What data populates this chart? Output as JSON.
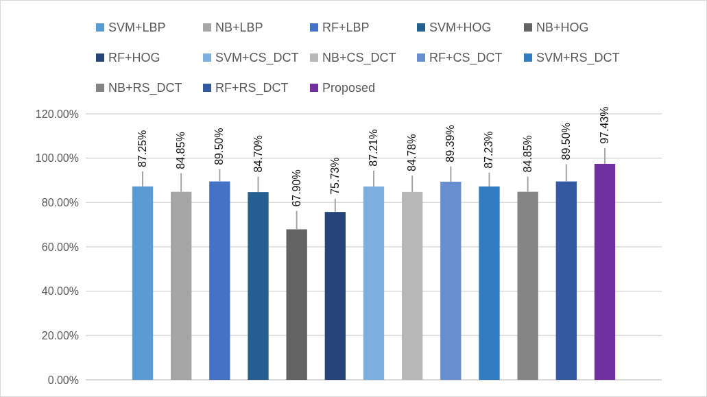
{
  "chart_data": {
    "type": "bar",
    "categories": [
      null
    ],
    "series": [
      {
        "name": "SVM+LBP",
        "color": "#5b9bd5",
        "values": [
          87.25
        ],
        "value_labels": [
          "87.25%"
        ],
        "errors": [
          [
            87.25,
            94.0
          ]
        ]
      },
      {
        "name": "NB+LBP",
        "color": "#a5a5a5",
        "values": [
          84.85
        ],
        "value_labels": [
          "84.85%"
        ],
        "errors": [
          [
            84.85,
            93.2
          ]
        ]
      },
      {
        "name": "RF+LBP",
        "color": "#4472c4",
        "values": [
          89.5
        ],
        "value_labels": [
          "89.50%"
        ],
        "errors": [
          [
            89.5,
            95.0
          ]
        ]
      },
      {
        "name": "SVM+HOG",
        "color": "#255e91",
        "values": [
          84.7
        ],
        "value_labels": [
          "84.70%"
        ],
        "errors": [
          [
            84.7,
            91.7
          ]
        ]
      },
      {
        "name": "NB+HOG",
        "color": "#636363",
        "values": [
          67.9
        ],
        "value_labels": [
          "67.90%"
        ],
        "errors": [
          [
            67.9,
            76.2
          ]
        ]
      },
      {
        "name": "RF+HOG",
        "color": "#264478",
        "values": [
          75.73
        ],
        "value_labels": [
          "75.73%"
        ],
        "errors": [
          [
            75.73,
            81.7
          ]
        ]
      },
      {
        "name": "SVM+CS_DCT",
        "color": "#7cafdd",
        "values": [
          87.21
        ],
        "value_labels": [
          "87.21%"
        ],
        "errors": [
          [
            87.21,
            94.4
          ]
        ]
      },
      {
        "name": "NB+CS_DCT",
        "color": "#b7b7b7",
        "values": [
          84.78
        ],
        "value_labels": [
          "84.78%"
        ],
        "errors": [
          [
            84.78,
            92.2
          ]
        ]
      },
      {
        "name": "RF+CS_DCT",
        "color": "#698ed0",
        "values": [
          89.39
        ],
        "value_labels": [
          "89.39%"
        ],
        "errors": [
          [
            89.39,
            96.3
          ]
        ]
      },
      {
        "name": "SVM+RS_DCT",
        "color": "#327dc2",
        "values": [
          87.23
        ],
        "value_labels": [
          "87.23%"
        ],
        "errors": [
          [
            87.23,
            93.5
          ]
        ]
      },
      {
        "name": "NB+RS_DCT",
        "color": "#848484",
        "values": [
          84.85
        ],
        "value_labels": [
          "84.85%"
        ],
        "errors": [
          [
            84.85,
            91.7
          ]
        ]
      },
      {
        "name": "RF+RS_DCT",
        "color": "#335aa1",
        "values": [
          89.5
        ],
        "value_labels": [
          "89.50%"
        ],
        "errors": [
          [
            89.5,
            97.3
          ]
        ]
      },
      {
        "name": "Proposed",
        "color": "#7030a0",
        "values": [
          97.43
        ],
        "value_labels": [
          "97.43%"
        ],
        "errors": [
          [
            97.43,
            104.6
          ]
        ]
      }
    ],
    "ylim": [
      0,
      120
    ],
    "yticks": [
      {
        "value": 0,
        "label": "0.00%"
      },
      {
        "value": 20,
        "label": "20.00%"
      },
      {
        "value": 40,
        "label": "40.00%"
      },
      {
        "value": 60,
        "label": "60.00%"
      },
      {
        "value": 80,
        "label": "80.00%"
      },
      {
        "value": 100,
        "label": "100.00%"
      },
      {
        "value": 120,
        "label": "120.00%"
      }
    ],
    "grid": "y",
    "legend": "top"
  }
}
